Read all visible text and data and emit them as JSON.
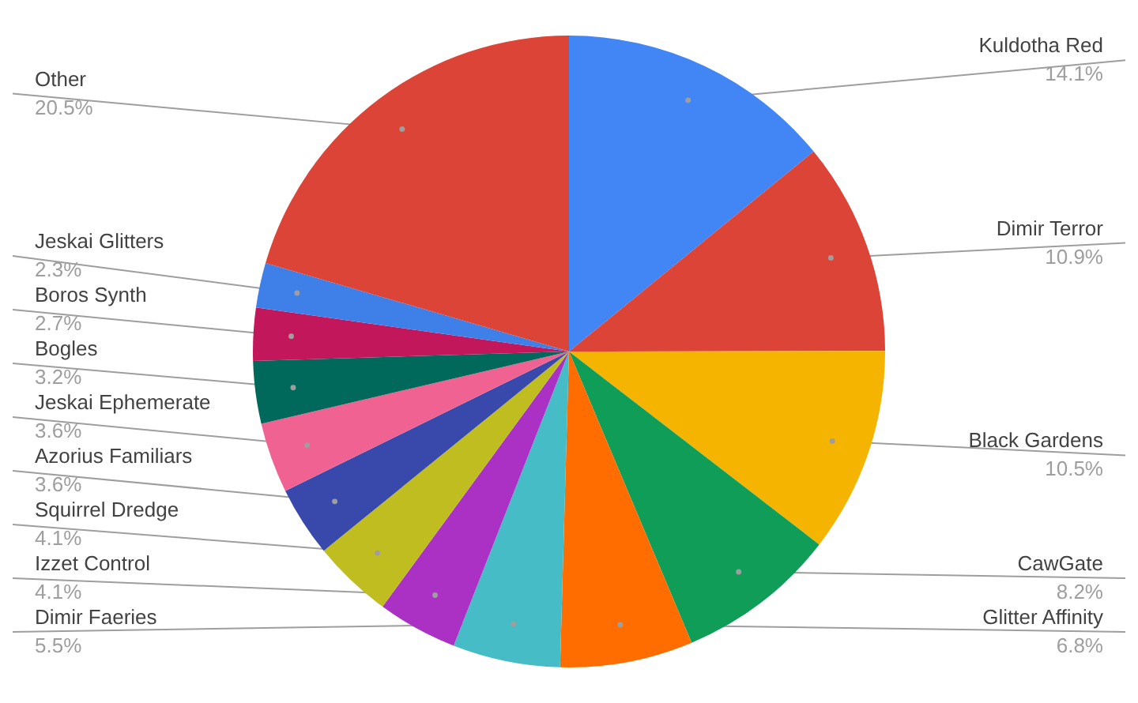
{
  "chart_data": {
    "type": "pie",
    "categories": [
      "Kuldotha Red",
      "Dimir Terror",
      "Black Gardens",
      "CawGate",
      "Glitter Affinity",
      "Dimir Faeries",
      "Izzet Control",
      "Squirrel Dredge",
      "Azorius Familiars",
      "Jeskai Ephemerate",
      "Bogles",
      "Boros Synth",
      "Jeskai Glitters",
      "Other"
    ],
    "values": [
      14.1,
      10.9,
      10.5,
      8.2,
      6.8,
      5.5,
      4.1,
      4.1,
      3.6,
      3.6,
      3.2,
      2.7,
      2.3,
      20.5
    ],
    "colors": [
      "#4285f4",
      "#db4437",
      "#f4b400",
      "#0f9d58",
      "#ff6d01",
      "#46bdc6",
      "#ab30c4",
      "#c0bd21",
      "#3949ab",
      "#f06292",
      "#00695c",
      "#c2185b",
      "#3f7fe8",
      "#db4437"
    ],
    "value_labels": [
      "14.1%",
      "10.9%",
      "10.5%",
      "8.2%",
      "6.8%",
      "5.5%",
      "4.1%",
      "4.1%",
      "3.6%",
      "3.6%",
      "3.2%",
      "2.7%",
      "2.3%",
      "20.5%"
    ]
  }
}
